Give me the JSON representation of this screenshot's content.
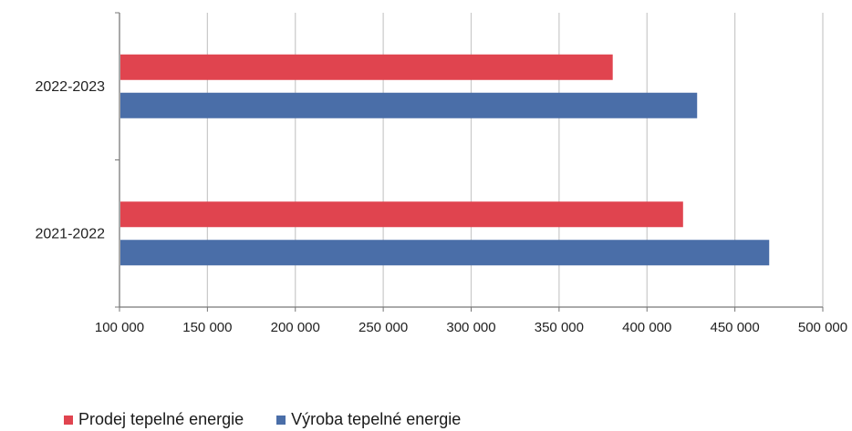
{
  "chart_data": {
    "type": "bar",
    "orientation": "horizontal",
    "categories": [
      "2022-2023",
      "2021-2022"
    ],
    "series": [
      {
        "name": "Prodej tepelné energie",
        "color": "#e0444f",
        "values": [
          380000,
          420000
        ]
      },
      {
        "name": "Výroba tepelné energie",
        "color": "#4a6ea8",
        "values": [
          428000,
          469000
        ]
      }
    ],
    "x_ticks": [
      "100 000",
      "150 000",
      "200 000",
      "250 000",
      "300 000",
      "350 000",
      "400 000",
      "450 000",
      "500 000"
    ],
    "xlim": [
      100000,
      500000
    ],
    "grid": "vertical",
    "legend_position": "bottom-left",
    "title": "",
    "xlabel": "",
    "ylabel": ""
  }
}
